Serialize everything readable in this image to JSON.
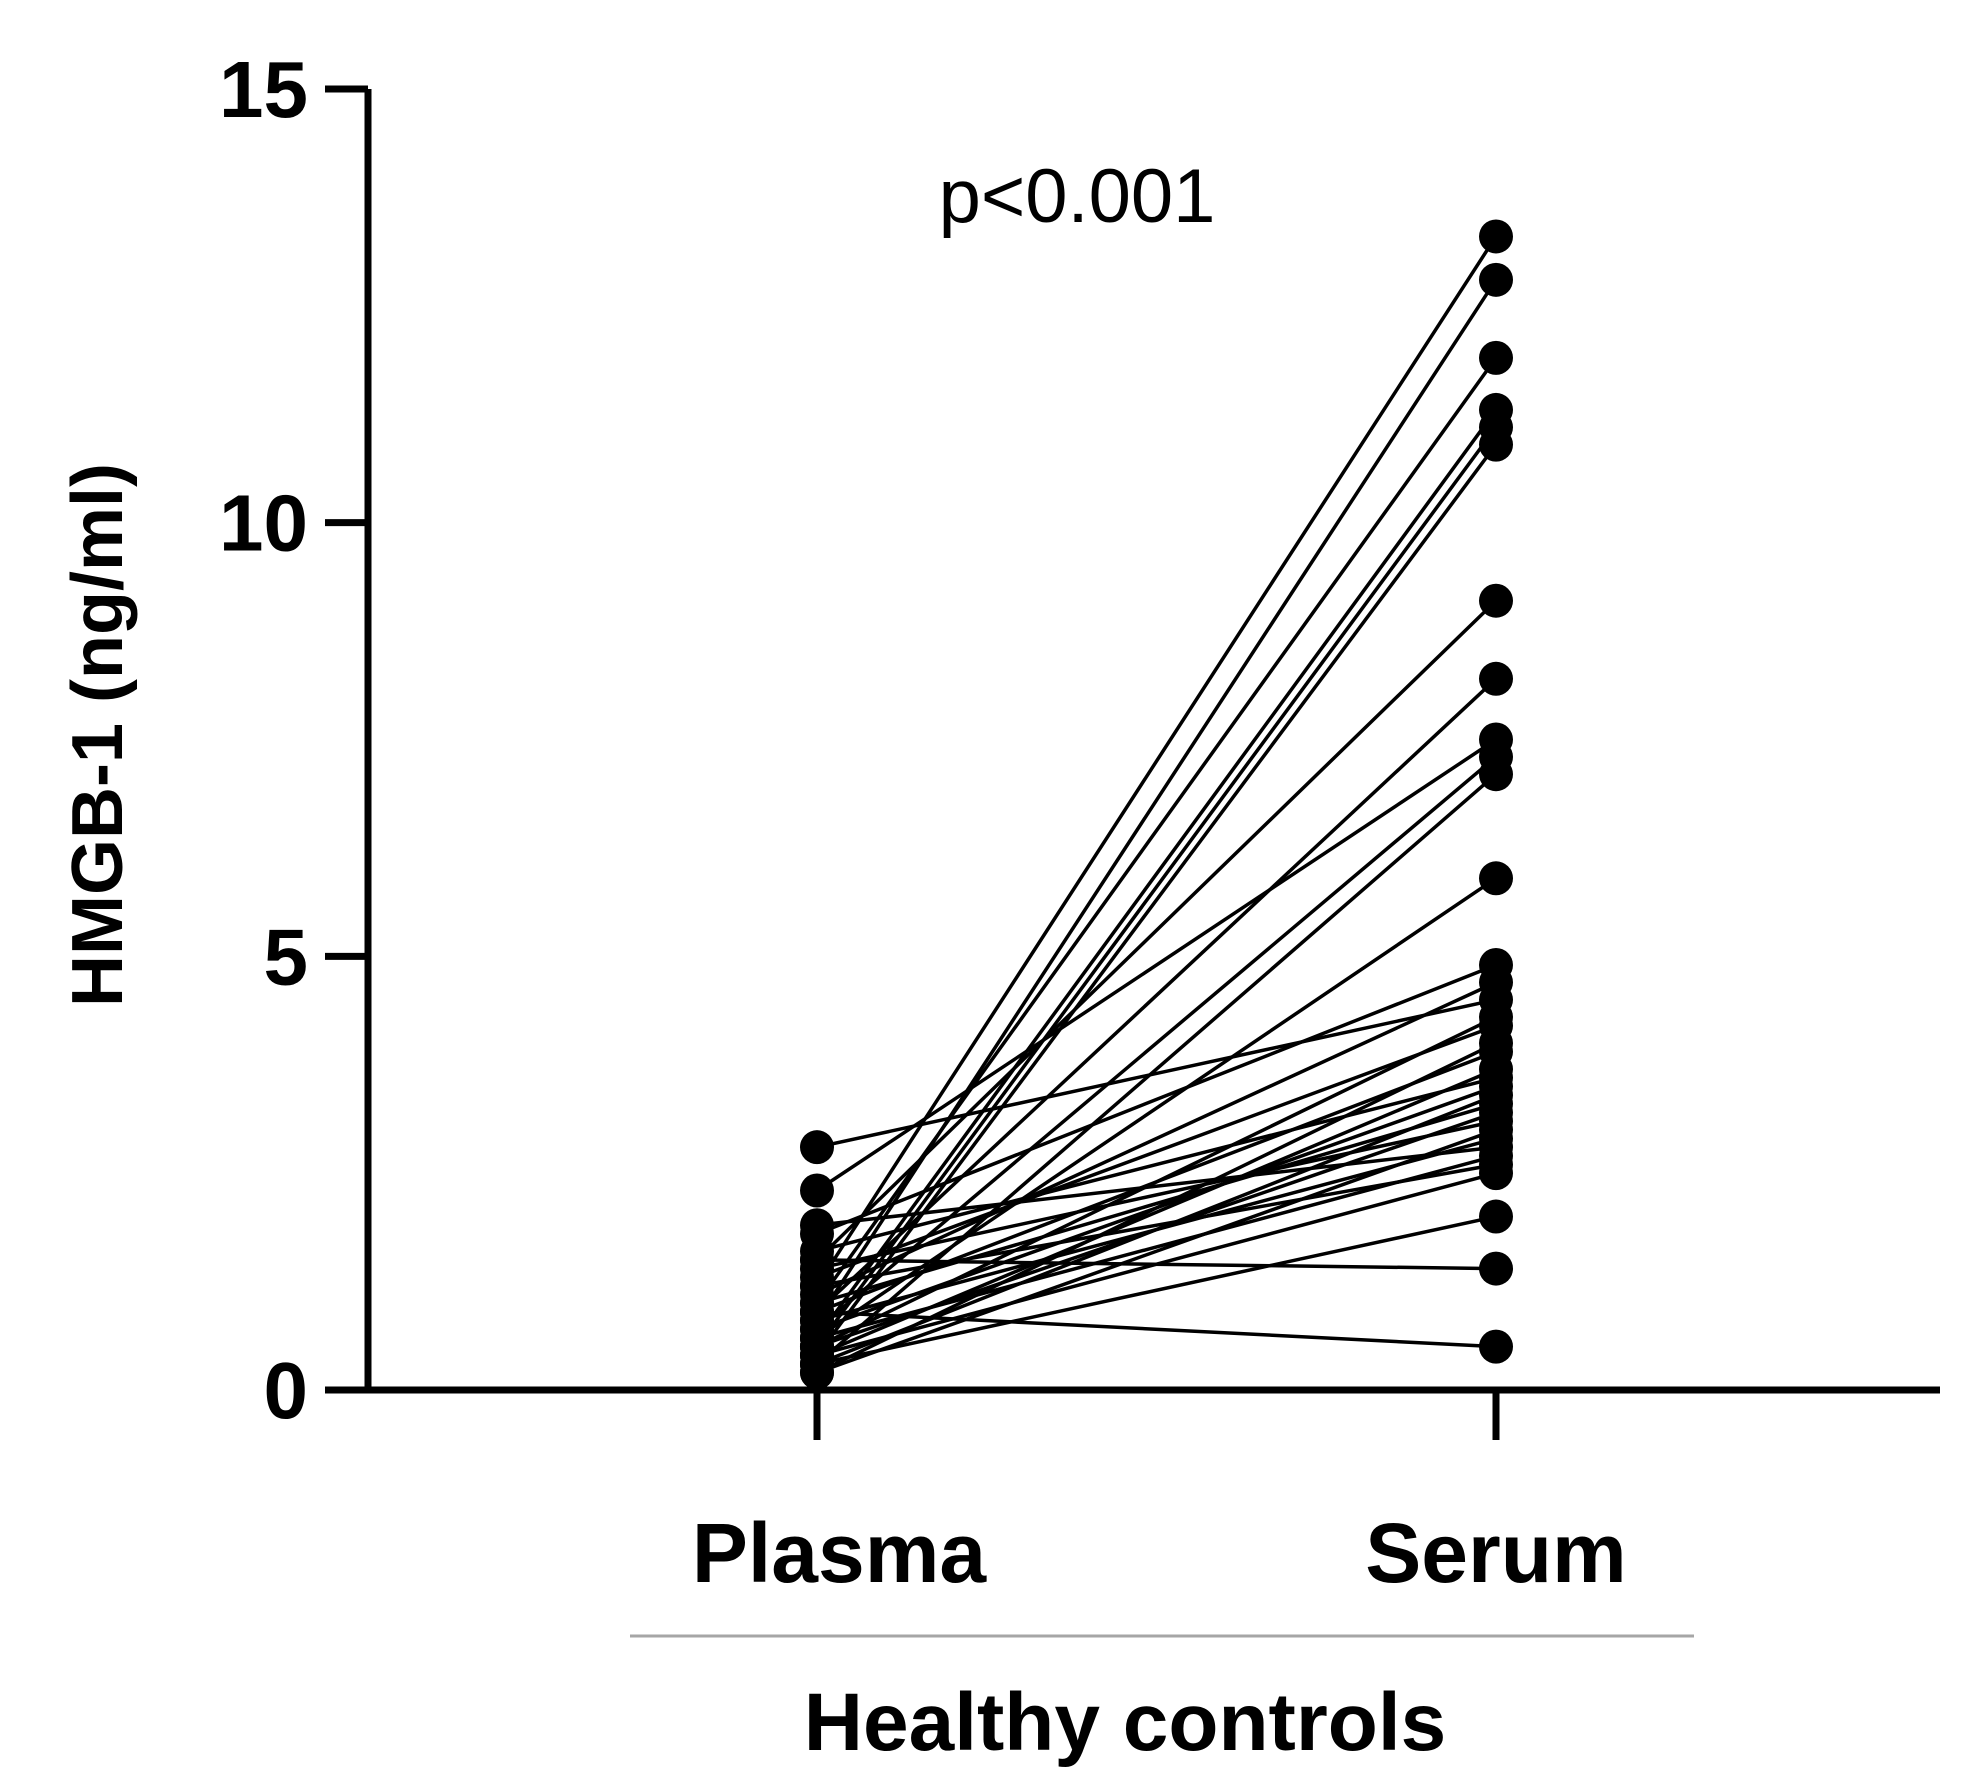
{
  "chart_data": {
    "type": "scatter",
    "subtype": "paired before-after plot",
    "categories": [
      "Plasma",
      "Serum"
    ],
    "ylabel": "HMGB-1 (ng/ml)",
    "group_label": "Healthy controls",
    "annotation": "p<0.001",
    "ylim": [
      0,
      15
    ],
    "yticks": [
      0,
      5,
      10,
      15
    ],
    "marker_color": "#000000",
    "line_color": "#000000",
    "pairs": [
      {
        "plasma": 1.2,
        "serum": 13.3
      },
      {
        "plasma": 0.8,
        "serum": 12.8
      },
      {
        "plasma": 1.0,
        "serum": 11.9
      },
      {
        "plasma": 0.6,
        "serum": 11.3
      },
      {
        "plasma": 0.5,
        "serum": 11.1
      },
      {
        "plasma": 0.4,
        "serum": 10.9
      },
      {
        "plasma": 1.5,
        "serum": 9.1
      },
      {
        "plasma": 0.9,
        "serum": 8.2
      },
      {
        "plasma": 2.3,
        "serum": 7.5
      },
      {
        "plasma": 0.7,
        "serum": 7.3
      },
      {
        "plasma": 0.3,
        "serum": 7.1
      },
      {
        "plasma": 0.6,
        "serum": 5.9
      },
      {
        "plasma": 1.8,
        "serum": 4.9
      },
      {
        "plasma": 1.1,
        "serum": 4.7
      },
      {
        "plasma": 2.8,
        "serum": 4.5
      },
      {
        "plasma": 0.5,
        "serum": 4.3
      },
      {
        "plasma": 1.3,
        "serum": 4.2
      },
      {
        "plasma": 0.2,
        "serum": 4.0
      },
      {
        "plasma": 0.9,
        "serum": 3.9
      },
      {
        "plasma": 0.4,
        "serum": 3.7
      },
      {
        "plasma": 1.6,
        "serum": 3.6
      },
      {
        "plasma": 0.7,
        "serum": 3.5
      },
      {
        "plasma": 0.3,
        "serum": 3.4
      },
      {
        "plasma": 1.0,
        "serum": 3.3
      },
      {
        "plasma": 0.5,
        "serum": 3.2
      },
      {
        "plasma": 1.4,
        "serum": 3.1
      },
      {
        "plasma": 0.2,
        "serum": 3.0
      },
      {
        "plasma": 0.8,
        "serum": 2.9
      },
      {
        "plasma": 1.9,
        "serum": 2.8
      },
      {
        "plasma": 0.6,
        "serum": 2.7
      },
      {
        "plasma": 1.2,
        "serum": 2.6
      },
      {
        "plasma": 0.4,
        "serum": 2.5
      },
      {
        "plasma": 0.3,
        "serum": 2.0
      },
      {
        "plasma": 1.5,
        "serum": 1.4
      },
      {
        "plasma": 0.9,
        "serum": 0.5
      }
    ]
  }
}
